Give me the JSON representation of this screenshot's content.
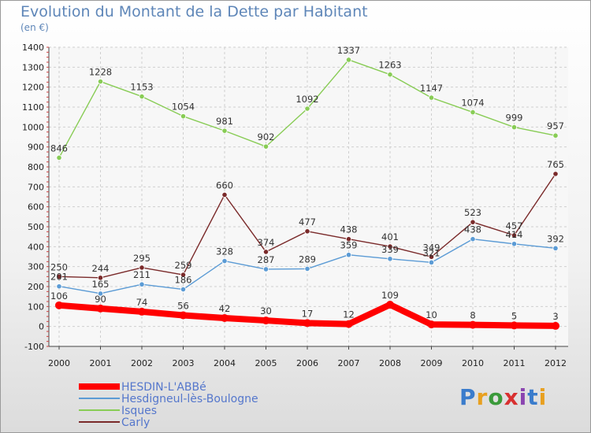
{
  "header": {
    "title": "Evolution du Montant de la Dette par Habitant",
    "subtitle": "(en €)"
  },
  "brand": {
    "text": "Proxiti",
    "colors": [
      "#3a7ccc",
      "#e8a020",
      "#3a9a3a",
      "#d83030",
      "#8a44b0",
      "#3a7ccc",
      "#e8a020"
    ]
  },
  "chart_data": {
    "type": "line",
    "x": [
      "2000",
      "2001",
      "2002",
      "2003",
      "2004",
      "2005",
      "2006",
      "2007",
      "2008",
      "2009",
      "2010",
      "2011",
      "2012"
    ],
    "ylim": [
      -100,
      1400
    ],
    "yticks": [
      "-100",
      "0",
      "100",
      "200",
      "300",
      "400",
      "500",
      "600",
      "700",
      "800",
      "900",
      "1000",
      "1100",
      "1200",
      "1300",
      "1400"
    ],
    "grid": true,
    "legend_position": "bottom-left",
    "series": [
      {
        "name": "HESDIN-L'ABBé",
        "color": "#ff0000",
        "values": [
          106,
          90,
          74,
          56,
          42,
          30,
          17,
          12,
          109,
          10,
          8,
          5,
          3
        ],
        "labels": [
          "106",
          "90",
          "74",
          "56",
          "42",
          "30",
          "17",
          "12",
          "109",
          "10",
          "8",
          "5",
          "3"
        ]
      },
      {
        "name": "Hesdigneul-lès-Boulogne",
        "color": "#5b9bd5",
        "values": [
          201,
          165,
          211,
          186,
          328,
          287,
          289,
          359,
          339,
          321,
          438,
          414,
          392
        ],
        "labels": [
          "201",
          "165",
          "211",
          "186",
          "328",
          "287",
          "289",
          "359",
          "339",
          "321",
          "438",
          "414",
          "392"
        ]
      },
      {
        "name": "Isques",
        "color": "#88cc55",
        "values": [
          846,
          1228,
          1153,
          1054,
          981,
          902,
          1092,
          1337,
          1263,
          1147,
          1074,
          999,
          957
        ],
        "labels": [
          "846",
          "1228",
          "1153",
          "1054",
          "981",
          "902",
          "1092",
          "1337",
          "1263",
          "1147",
          "1074",
          "999",
          "957"
        ]
      },
      {
        "name": "Carly",
        "color": "#7a2a2a",
        "values": [
          250,
          244,
          295,
          259,
          660,
          374,
          477,
          438,
          401,
          349,
          523,
          457,
          765
        ],
        "labels": [
          "250",
          "244",
          "295",
          "259",
          "660",
          "374",
          "477",
          "438",
          "401",
          "349",
          "523",
          "457",
          "765"
        ]
      }
    ]
  }
}
